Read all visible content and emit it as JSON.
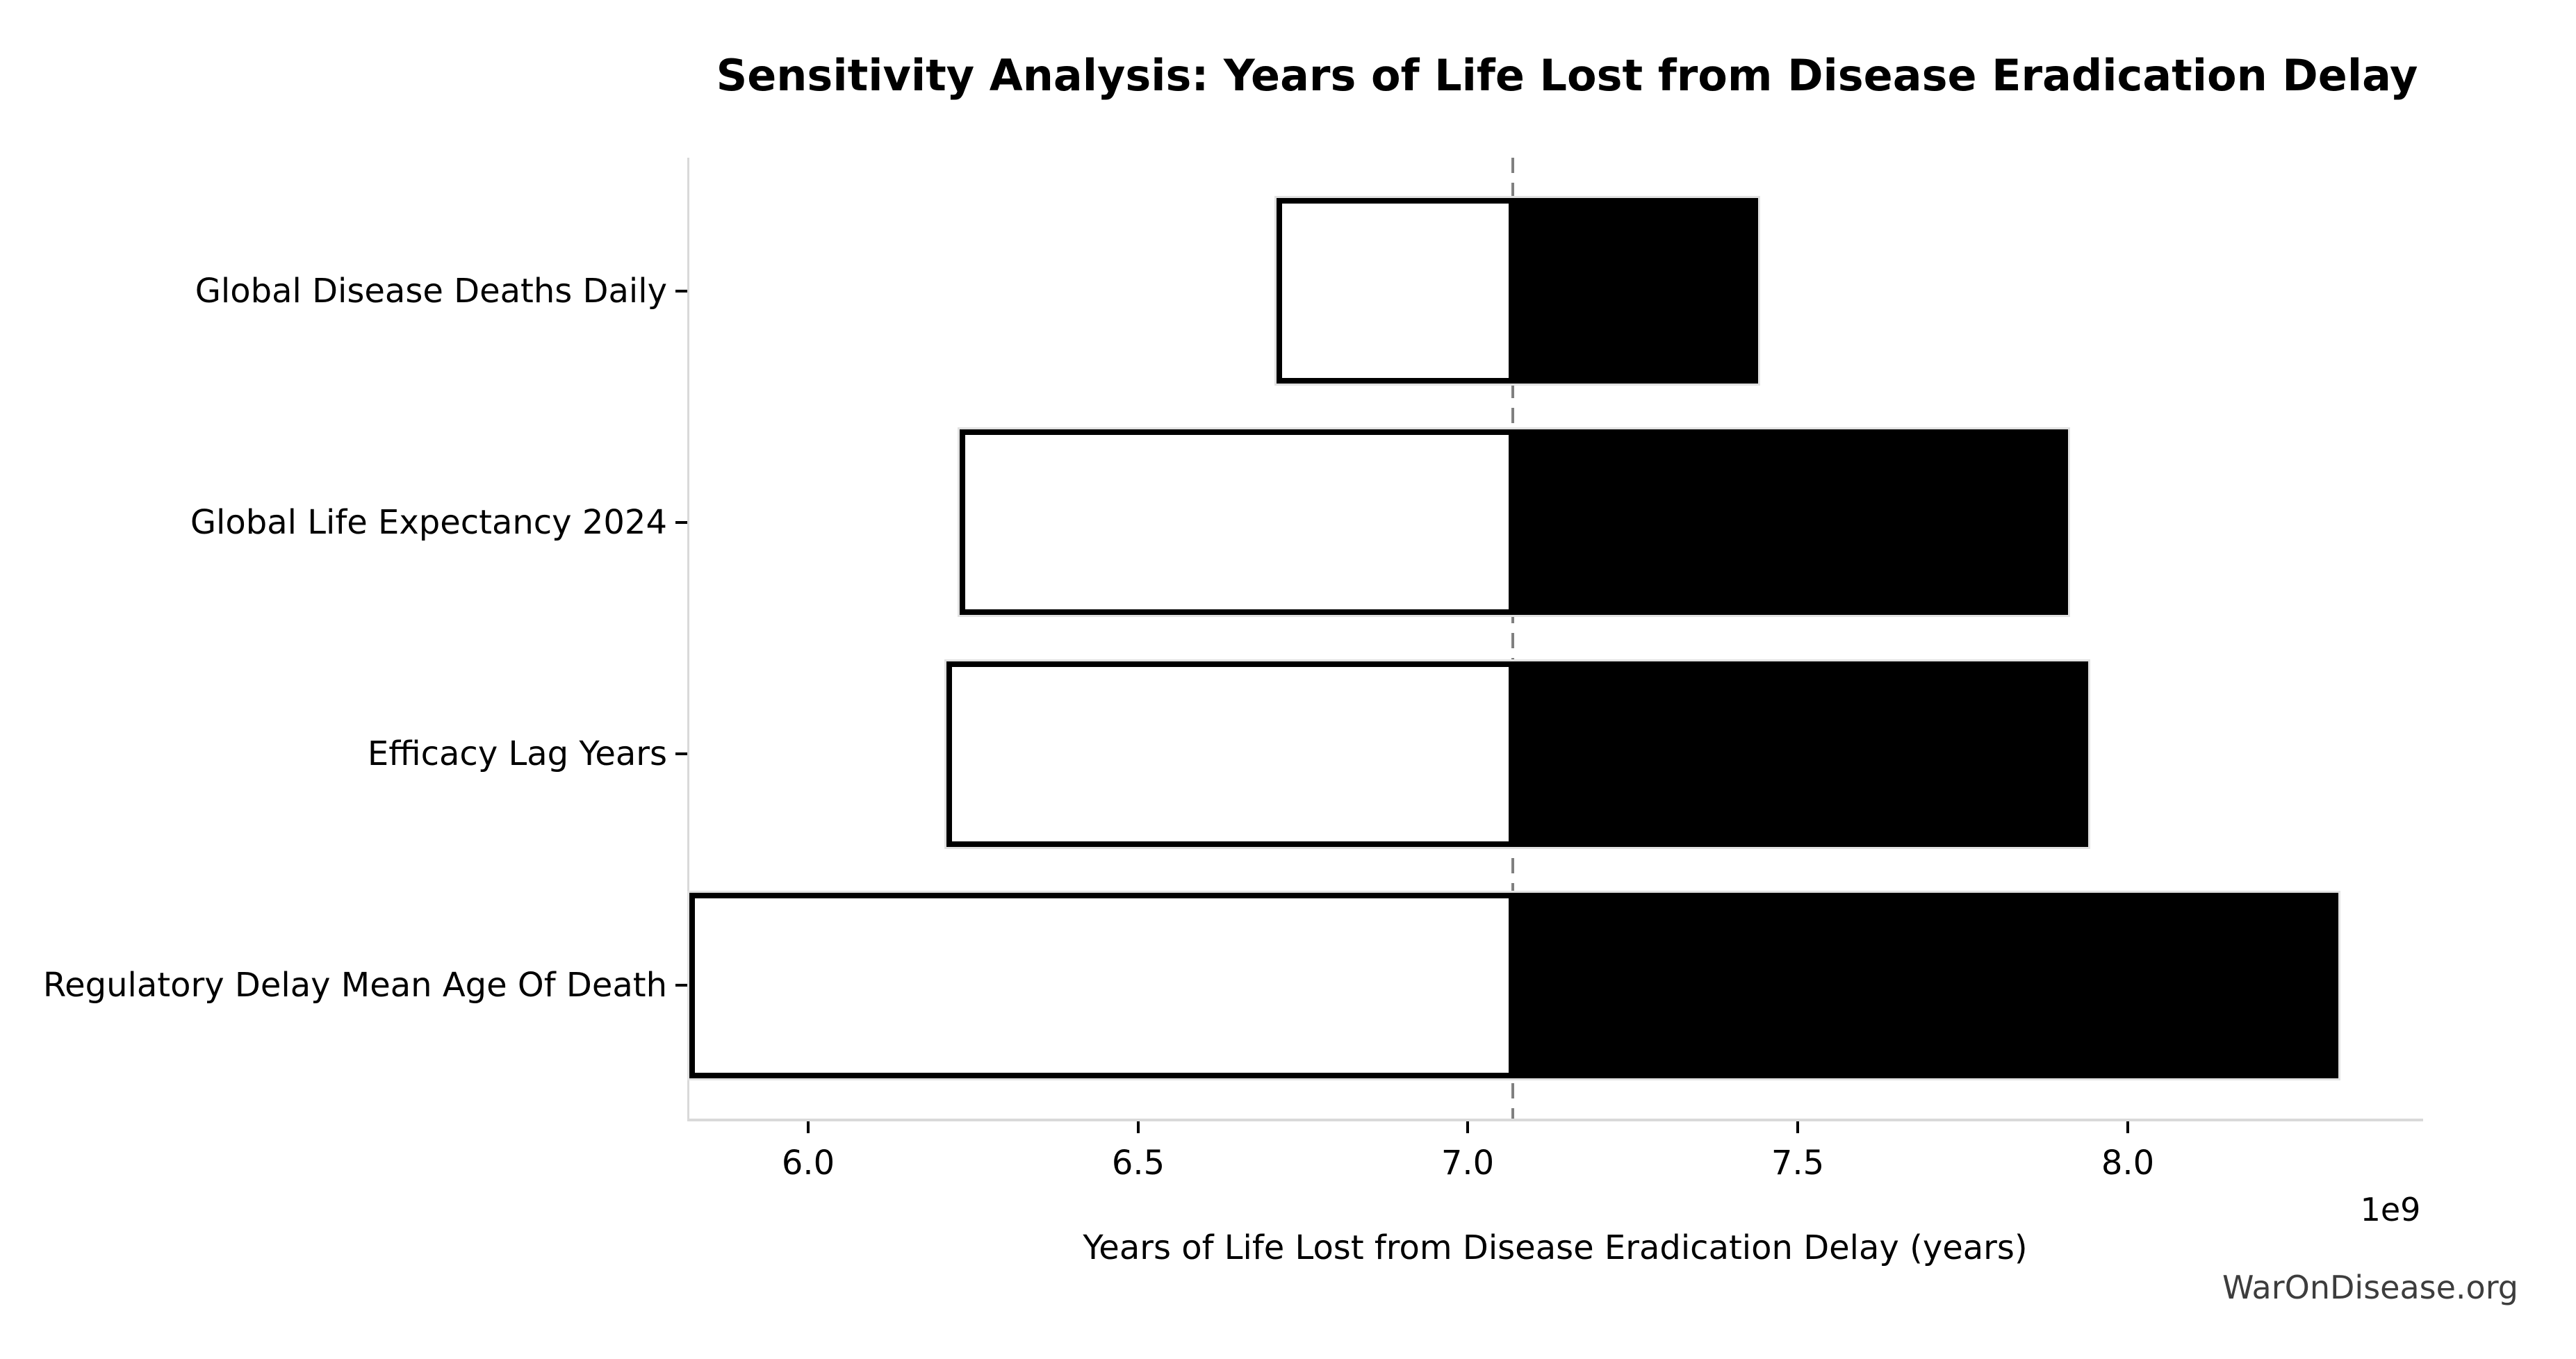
{
  "title": "Sensitivity Analysis: Years of Life Lost from Disease Eradication Delay",
  "watermark": "WarOnDisease.org",
  "chart_data": {
    "type": "bar",
    "subtype": "tornado-sensitivity",
    "title": "Sensitivity Analysis: Years of Life Lost from Disease Eradication Delay",
    "xlabel": "Years of Life Lost from Disease Eradication Delay (years)",
    "offset_label": "1e9",
    "value_units": "1e9 years",
    "baseline": 7.07,
    "xlim": [
      5.82,
      8.445
    ],
    "xticks": [
      6.0,
      6.5,
      7.0,
      7.5,
      8.0
    ],
    "xtick_labels": [
      "6.0",
      "6.5",
      "7.0",
      "7.5",
      "8.0"
    ],
    "grid": false,
    "legend": false,
    "categories": [
      "Global Disease Deaths Daily",
      "Global Life Expectancy 2024",
      "Efficacy Lag Years",
      "Regulatory Delay Mean Age Of Death"
    ],
    "bars": [
      {
        "label": "Global Disease Deaths Daily",
        "low": 6.71,
        "high": 7.44
      },
      {
        "label": "Global Life Expectancy 2024",
        "low": 6.23,
        "high": 7.91
      },
      {
        "label": "Efficacy Lag Years",
        "low": 6.21,
        "high": 7.94
      },
      {
        "label": "Regulatory Delay Mean Age Of Death",
        "low": 5.82,
        "high": 8.32
      }
    ],
    "colors": {
      "low_fill": "#ffffff",
      "high_fill": "#000000",
      "bar_edge": "#000000",
      "baseline_line": "#808080",
      "spine": "#d9d9d9",
      "tick": "#000000",
      "watermark": "#3d3d3d"
    }
  }
}
